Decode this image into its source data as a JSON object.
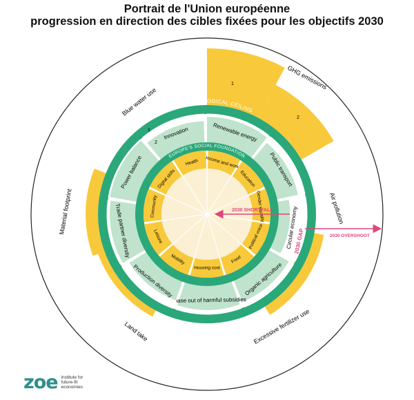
{
  "title": "Portrait de l'Union européenne",
  "subtitle": "progression en direction des cibles fixées pour les objectifs 2030",
  "ring_labels": {
    "ceiling": "EUROPE'S ECOLOGICAL CEILING",
    "foundation": "EUROPE'S SOCIAL FOUNDATION"
  },
  "outer_labels": [
    "GHG emissions",
    "Air pollution",
    "Excessive fertilizer use",
    "Land take",
    "Material footprint",
    "Blue water use"
  ],
  "ceiling_sectors": [
    "Renewable energy",
    "Public transport",
    "Circular economy",
    "Organic agriculture",
    "Phase out of harmful subsidies",
    "Production diversity",
    "Trade partner diversity",
    "Power balance",
    "Innovation"
  ],
  "foundation_sectors": [
    "Income and work",
    "Education",
    "Gender equality",
    "Political voice",
    "Food",
    "Housing cost",
    "Mobility",
    "Leisure",
    "Community",
    "Digital skills",
    "Health"
  ],
  "annotations": {
    "shortfall": "2030 SHORTFALL",
    "overshoot": "2030 OVERSHOOT",
    "gap": "2030 GAP",
    "one": "1",
    "two": "2"
  },
  "logo": {
    "mark": "zoe",
    "line1": "institute for",
    "line2": "future-fit",
    "line3": "economies"
  },
  "colors": {
    "green": "#2aa87a",
    "light_green": "#bfe3cc",
    "yellow": "#f8c93a",
    "cream": "#fbf0d4",
    "pink": "#e0457b"
  }
}
